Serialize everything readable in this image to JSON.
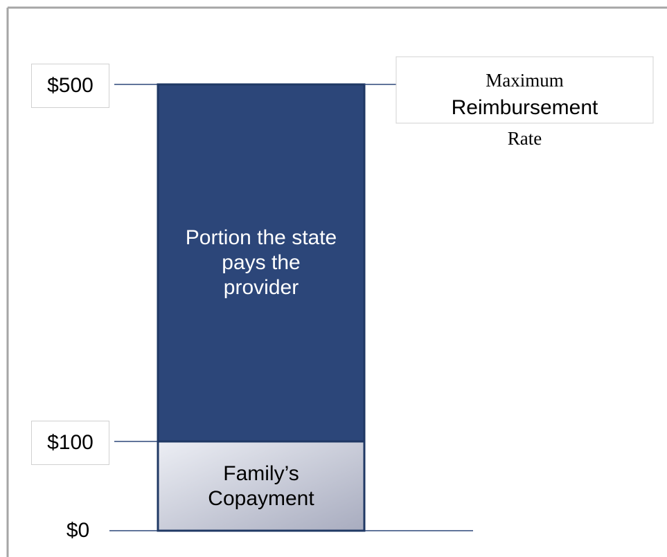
{
  "chart_data": {
    "type": "bar",
    "stacked": true,
    "series": [
      {
        "name": "Family’s Copayment",
        "color": "#c9ccd9",
        "values": [
          100
        ]
      },
      {
        "name": "Portion the state pays the provider",
        "color": "#2c4679",
        "values": [
          400
        ]
      }
    ],
    "ylim": [
      0,
      500
    ],
    "yticks": [
      {
        "value": 0,
        "label": "$0"
      },
      {
        "value": 100,
        "label": "$100"
      },
      {
        "value": 500,
        "label": "$500"
      }
    ],
    "annotation": "Maximum Reimbursement Rate"
  }
}
